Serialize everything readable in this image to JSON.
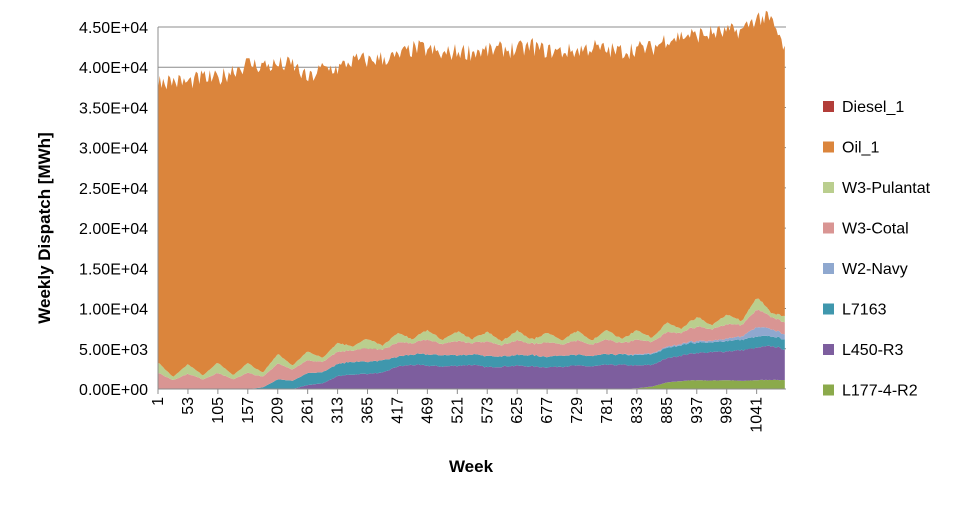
{
  "chart_data": {
    "type": "area",
    "stacked": true,
    "title": "",
    "xlabel": "Week",
    "ylabel": "Weekly Dispatch [MWh]",
    "xlim": [
      1,
      1092
    ],
    "ylim": [
      0,
      45000
    ],
    "x_tick_labels": [
      "1",
      "53",
      "105",
      "157",
      "209",
      "261",
      "313",
      "365",
      "417",
      "469",
      "521",
      "573",
      "625",
      "677",
      "729",
      "781",
      "833",
      "885",
      "937",
      "989",
      "1041"
    ],
    "y_tick_labels": [
      "0.00E+00",
      "5.00E+03",
      "1.00E+04",
      "1.50E+04",
      "2.00E+04",
      "2.50E+04",
      "3.00E+04",
      "3.50E+04",
      "4.00E+04",
      "4.50E+04"
    ],
    "grid": "horizontal",
    "legend_position": "right",
    "x": [
      1,
      27,
      53,
      79,
      105,
      131,
      157,
      183,
      209,
      235,
      261,
      287,
      313,
      339,
      365,
      391,
      417,
      443,
      469,
      495,
      521,
      547,
      573,
      599,
      625,
      651,
      677,
      703,
      729,
      755,
      781,
      807,
      833,
      859,
      885,
      911,
      937,
      963,
      989,
      1015,
      1041,
      1067,
      1092
    ],
    "series": [
      {
        "name": "L177-4-R2",
        "color": "#8BAA4B",
        "values": [
          0,
          0,
          0,
          0,
          0,
          0,
          0,
          0,
          0,
          0,
          0,
          0,
          0,
          0,
          0,
          0,
          0,
          0,
          0,
          0,
          0,
          0,
          0,
          0,
          0,
          0,
          0,
          0,
          0,
          0,
          0,
          0,
          100,
          300,
          800,
          1000,
          1100,
          1050,
          1100,
          1000,
          1100,
          1150,
          1100
        ]
      },
      {
        "name": "L450-R3",
        "color": "#7D5E9E",
        "values": [
          0,
          0,
          0,
          0,
          0,
          0,
          0,
          0,
          0,
          0,
          500,
          700,
          1600,
          1800,
          1900,
          2000,
          2800,
          3000,
          2900,
          2800,
          2900,
          3000,
          2700,
          2800,
          2900,
          2800,
          2700,
          2800,
          2900,
          2800,
          3000,
          3000,
          2800,
          2700,
          3000,
          3200,
          3400,
          3500,
          3600,
          3800,
          4000,
          4200,
          3800
        ]
      },
      {
        "name": "L7163",
        "color": "#3F97AD",
        "values": [
          0,
          0,
          0,
          0,
          0,
          0,
          0,
          200,
          1200,
          1000,
          1500,
          1400,
          1500,
          1600,
          1500,
          1500,
          1200,
          1300,
          1400,
          1400,
          1300,
          1300,
          1400,
          1300,
          1300,
          1400,
          1300,
          1400,
          1300,
          1300,
          1300,
          1300,
          1300,
          1300,
          1300,
          1300,
          1300,
          1200,
          1300,
          1300,
          1400,
          1200,
          1300
        ]
      },
      {
        "name": "W2-Navy",
        "color": "#8FA8CF",
        "values": [
          0,
          0,
          0,
          0,
          0,
          0,
          0,
          0,
          0,
          0,
          0,
          0,
          0,
          0,
          0,
          0,
          0,
          0,
          0,
          0,
          0,
          0,
          0,
          0,
          0,
          0,
          0,
          0,
          0,
          0,
          0,
          0,
          100,
          100,
          150,
          150,
          200,
          200,
          300,
          400,
          1200,
          900,
          600
        ]
      },
      {
        "name": "W3-Cotal",
        "color": "#D99593",
        "values": [
          2000,
          1100,
          1900,
          1200,
          2000,
          1200,
          2000,
          1300,
          2000,
          1400,
          1600,
          1300,
          1500,
          1400,
          1700,
          1300,
          1800,
          1400,
          1800,
          1400,
          1800,
          1400,
          1800,
          1400,
          1800,
          1400,
          1800,
          1400,
          1800,
          1400,
          1800,
          1400,
          1800,
          1400,
          1800,
          1400,
          1800,
          1400,
          1800,
          1400,
          2200,
          1500,
          1500
        ]
      },
      {
        "name": "W3-Pulantat",
        "color": "#BACE8E",
        "values": [
          1300,
          400,
          1200,
          500,
          1300,
          500,
          1200,
          500,
          1200,
          500,
          1100,
          500,
          1100,
          500,
          1200,
          500,
          1200,
          500,
          1200,
          500,
          1200,
          500,
          1200,
          500,
          1200,
          500,
          1200,
          500,
          1200,
          500,
          1200,
          500,
          1200,
          500,
          1200,
          500,
          1200,
          500,
          1200,
          500,
          1500,
          500,
          800
        ]
      },
      {
        "name": "Oil_1",
        "color": "#DB853C",
        "values": [
          35000,
          36800,
          35000,
          37000,
          35200,
          38000,
          37200,
          38200,
          35900,
          37400,
          33800,
          36000,
          34100,
          35500,
          34600,
          35700,
          34300,
          36100,
          34900,
          35400,
          34800,
          35700,
          34900,
          36300,
          34900,
          36500,
          35000,
          35900,
          34800,
          36500,
          34700,
          35800,
          35000,
          36000,
          35300,
          36400,
          35000,
          36300,
          35100,
          36100,
          34800,
          36300,
          32800
        ]
      },
      {
        "name": "Diesel_1",
        "color": "#B23D39",
        "values": [
          0,
          0,
          0,
          0,
          0,
          0,
          0,
          0,
          0,
          0,
          0,
          0,
          0,
          0,
          0,
          0,
          0,
          0,
          0,
          0,
          0,
          0,
          0,
          0,
          0,
          0,
          0,
          0,
          0,
          0,
          0,
          0,
          0,
          0,
          0,
          0,
          0,
          0,
          0,
          0,
          0,
          0,
          0
        ]
      }
    ],
    "legend_order": [
      "Diesel_1",
      "Oil_1",
      "W3-Pulantat",
      "W3-Cotal",
      "W2-Navy",
      "L7163",
      "L450-R3",
      "L177-4-R2"
    ]
  }
}
